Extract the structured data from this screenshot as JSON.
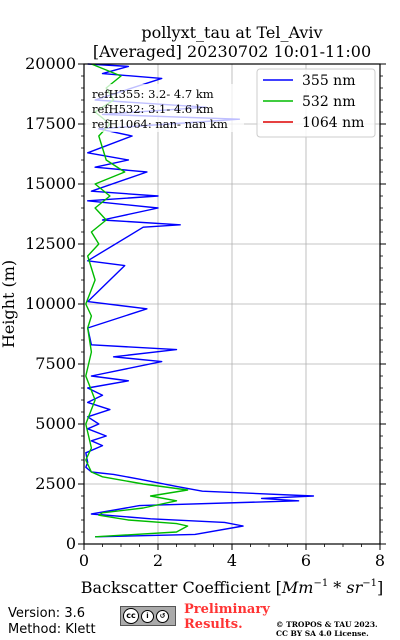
{
  "chart_data": {
    "type": "line",
    "title": "pollyxt_tau at Tel_Aviv",
    "subtitle": "[Averaged] 20230702 10:01-11:00",
    "xlabel": "Backscatter Coefficient [",
    "xlabel_math": "Mm",
    "xlabel_math_sup1": "−1",
    "xlabel_math_mid": " * sr",
    "xlabel_math_sup2": "−1",
    "xlabel_end": "]",
    "ylabel": "Height (m)",
    "xlim": [
      0,
      8
    ],
    "ylim": [
      0,
      20000
    ],
    "xticks": [
      0,
      2,
      4,
      6,
      8
    ],
    "yticks": [
      0,
      2500,
      5000,
      7500,
      10000,
      12500,
      15000,
      17500,
      20000
    ],
    "xtick_labels": [
      "0",
      "2",
      "4",
      "6",
      "8"
    ],
    "ytick_labels": [
      "0",
      "2500",
      "5000",
      "7500",
      "10000",
      "12500",
      "15000",
      "17500",
      "20000"
    ],
    "grid": true,
    "legend_position": "top-right",
    "annotations": [
      "refH355:  3.2- 4.7 km",
      "refH532:  3.1- 4.6 km",
      "refH1064:  nan- nan km"
    ],
    "series": [
      {
        "name": "355 nm",
        "color": "#0000ff",
        "points": [
          [
            0.3,
            300
          ],
          [
            3.0,
            400
          ],
          [
            4.3,
            750
          ],
          [
            3.8,
            900
          ],
          [
            1.8,
            1050
          ],
          [
            0.2,
            1250
          ],
          [
            1.5,
            1600
          ],
          [
            5.8,
            1800
          ],
          [
            4.8,
            1900
          ],
          [
            6.2,
            2000
          ],
          [
            3.2,
            2200
          ],
          [
            2.5,
            2400
          ],
          [
            1.5,
            2700
          ],
          [
            0.8,
            2900
          ],
          [
            0.2,
            3000
          ],
          [
            0.05,
            3200
          ],
          [
            0.1,
            3400
          ],
          [
            0.05,
            3800
          ],
          [
            0.5,
            4100
          ],
          [
            0.2,
            4300
          ],
          [
            0.6,
            4500
          ],
          [
            0.1,
            4800
          ],
          [
            0.4,
            5000
          ],
          [
            0.1,
            5300
          ],
          [
            0.7,
            5600
          ],
          [
            0.1,
            5900
          ],
          [
            0.5,
            6200
          ],
          [
            0.1,
            6500
          ],
          [
            1.2,
            6800
          ],
          [
            0.2,
            7000
          ],
          [
            2.1,
            7600
          ],
          [
            0.8,
            7800
          ],
          [
            2.5,
            8100
          ],
          [
            0.2,
            8300
          ],
          [
            0.1,
            9000
          ],
          [
            1.7,
            9800
          ],
          [
            0.1,
            10100
          ],
          [
            1.1,
            11600
          ],
          [
            0.1,
            11800
          ],
          [
            1.6,
            13200
          ],
          [
            2.6,
            13300
          ],
          [
            0.5,
            13500
          ],
          [
            2.0,
            14000
          ],
          [
            0.1,
            14300
          ],
          [
            2.0,
            14500
          ],
          [
            0.2,
            14700
          ],
          [
            1.7,
            15500
          ],
          [
            0.3,
            15700
          ],
          [
            1.2,
            16000
          ],
          [
            0.1,
            16300
          ],
          [
            1.3,
            17000
          ],
          [
            0.4,
            17300
          ],
          [
            4.2,
            17700
          ],
          [
            0.5,
            17900
          ],
          [
            3.3,
            18200
          ],
          [
            0.3,
            18500
          ],
          [
            2.1,
            19400
          ],
          [
            0.5,
            19600
          ],
          [
            1.2,
            19900
          ],
          [
            0.1,
            20000
          ]
        ]
      },
      {
        "name": "532 nm",
        "color": "#00bb00",
        "points": [
          [
            0.3,
            300
          ],
          [
            2.5,
            500
          ],
          [
            2.8,
            750
          ],
          [
            2.5,
            850
          ],
          [
            1.2,
            1000
          ],
          [
            0.4,
            1200
          ],
          [
            0.5,
            1300
          ],
          [
            1.6,
            1500
          ],
          [
            2.5,
            1800
          ],
          [
            1.8,
            2000
          ],
          [
            2.8,
            2250
          ],
          [
            1.6,
            2500
          ],
          [
            0.5,
            2800
          ],
          [
            0.2,
            3000
          ],
          [
            0.05,
            3500
          ],
          [
            0.2,
            4000
          ],
          [
            0.05,
            5000
          ],
          [
            0.3,
            6000
          ],
          [
            0.05,
            7000
          ],
          [
            0.2,
            8000
          ],
          [
            0.1,
            9000
          ],
          [
            0.2,
            9500
          ],
          [
            0.05,
            10000
          ],
          [
            0.3,
            11000
          ],
          [
            0.1,
            12000
          ],
          [
            0.4,
            12500
          ],
          [
            0.2,
            13000
          ],
          [
            0.6,
            13500
          ],
          [
            0.3,
            14000
          ],
          [
            0.7,
            14500
          ],
          [
            0.3,
            15000
          ],
          [
            1.1,
            15500
          ],
          [
            0.6,
            16000
          ],
          [
            0.4,
            17000
          ],
          [
            0.7,
            17500
          ],
          [
            0.3,
            18000
          ],
          [
            0.8,
            18500
          ],
          [
            0.6,
            19000
          ],
          [
            1.0,
            19500
          ],
          [
            0.2,
            20000
          ]
        ]
      },
      {
        "name": "1064 nm",
        "color": "#dd0000",
        "points": []
      }
    ]
  },
  "footer": {
    "version": "Version: 3.6",
    "method": "Method: Klett",
    "badge": "CC BY SA",
    "preliminary": "Preliminary",
    "results": "Results.",
    "license_line1": "© TROPOS & TAU 2023.",
    "license_line2": "CC BY SA 4.0 License."
  }
}
